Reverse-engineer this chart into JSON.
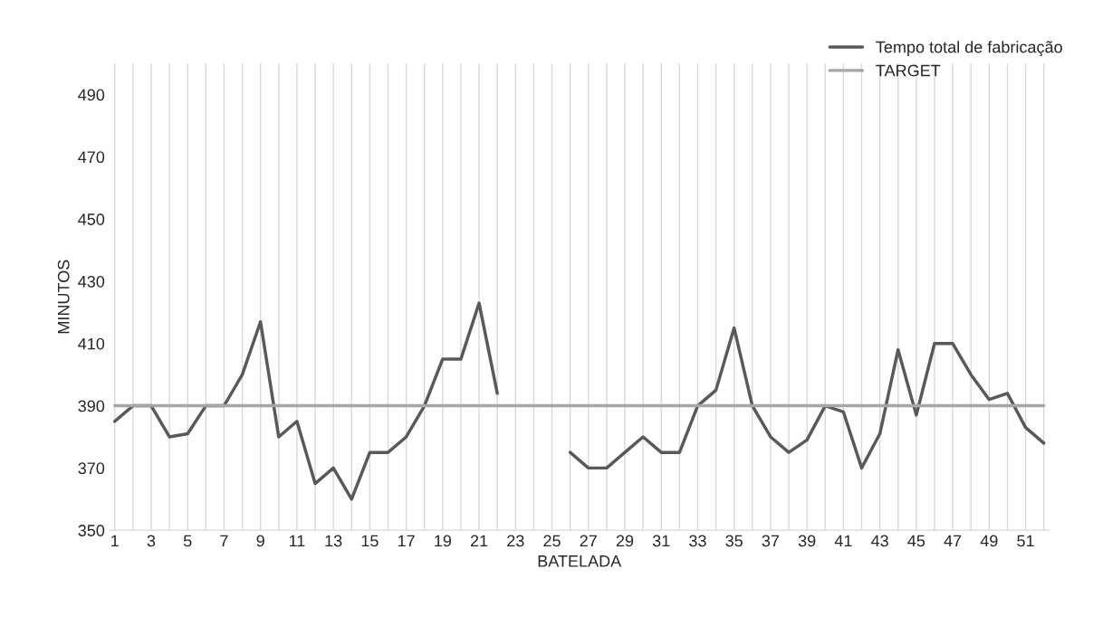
{
  "chart_data": {
    "type": "line",
    "xlabel": "BATELADA",
    "ylabel": "MINUTOS",
    "categories": [
      "1",
      null,
      "3",
      null,
      "5",
      null,
      "7",
      null,
      "9",
      null,
      "11",
      null,
      "13",
      null,
      "15",
      null,
      "17",
      null,
      "19",
      null,
      "21",
      null,
      "23",
      null,
      "25",
      null,
      "27",
      null,
      "29",
      null,
      "31",
      null,
      "33",
      null,
      "35",
      null,
      "37",
      null,
      "39",
      null,
      "41",
      null,
      "43",
      null,
      "45",
      null,
      "47",
      null,
      "49",
      null,
      "51",
      null
    ],
    "series": [
      {
        "name": "Tempo total de fabricação",
        "color": "#595959",
        "values": [
          385,
          390,
          390,
          380,
          381,
          390,
          390,
          400,
          417,
          380,
          385,
          365,
          370,
          360,
          375,
          375,
          380,
          390,
          405,
          405,
          423,
          394,
          null,
          null,
          null,
          375,
          370,
          370,
          375,
          380,
          375,
          375,
          390,
          395,
          415,
          390,
          380,
          375,
          379,
          390,
          388,
          370,
          381,
          408,
          387,
          410,
          410,
          400,
          392,
          394,
          383,
          378
        ]
      },
      {
        "name": "TARGET",
        "color": "#a6a6a6",
        "values": [
          390,
          390,
          390,
          390,
          390,
          390,
          390,
          390,
          390,
          390,
          390,
          390,
          390,
          390,
          390,
          390,
          390,
          390,
          390,
          390,
          390,
          390,
          390,
          390,
          390,
          390,
          390,
          390,
          390,
          390,
          390,
          390,
          390,
          390,
          390,
          390,
          390,
          390,
          390,
          390,
          390,
          390,
          390,
          390,
          390,
          390,
          390,
          390,
          390,
          390,
          390,
          390
        ]
      }
    ],
    "ylim": [
      350,
      500
    ],
    "yticks": [
      350,
      370,
      390,
      410,
      430,
      450,
      470,
      490
    ],
    "grid": "x",
    "legend": "top right",
    "marker": "none",
    "line_style": "solid"
  }
}
